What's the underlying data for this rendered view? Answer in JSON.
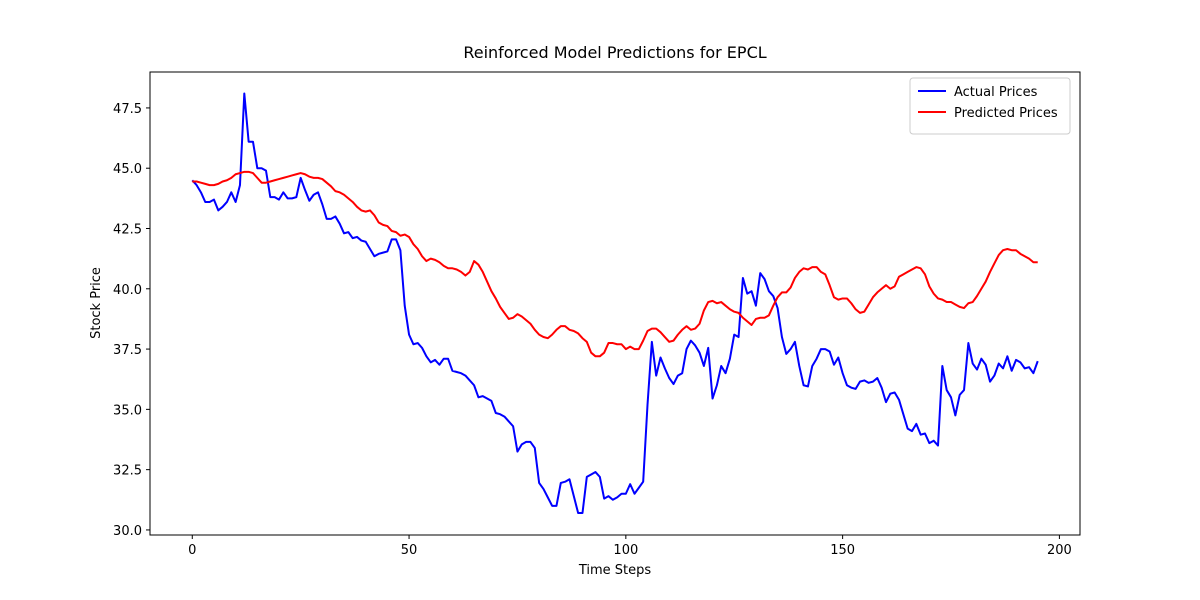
{
  "chart_data": {
    "type": "line",
    "title": "Reinforced Model Predictions for EPCL",
    "x_label": "Time Steps",
    "y_label": "Stock Price",
    "x": [
      0,
      1,
      2,
      3,
      4,
      5,
      6,
      7,
      8,
      9,
      10,
      11,
      12,
      13,
      14,
      15,
      16,
      17,
      18,
      19,
      20,
      21,
      22,
      23,
      24,
      25,
      26,
      27,
      28,
      29,
      30,
      31,
      32,
      33,
      34,
      35,
      36,
      37,
      38,
      39,
      40,
      41,
      42,
      43,
      44,
      45,
      46,
      47,
      48,
      49,
      50,
      51,
      52,
      53,
      54,
      55,
      56,
      57,
      58,
      59,
      60,
      61,
      62,
      63,
      64,
      65,
      66,
      67,
      68,
      69,
      70,
      71,
      72,
      73,
      74,
      75,
      76,
      77,
      78,
      79,
      80,
      81,
      82,
      83,
      84,
      85,
      86,
      87,
      88,
      89,
      90,
      91,
      92,
      93,
      94,
      95,
      96,
      97,
      98,
      99,
      100,
      101,
      102,
      103,
      104,
      105,
      106,
      107,
      108,
      109,
      110,
      111,
      112,
      113,
      114,
      115,
      116,
      117,
      118,
      119,
      120,
      121,
      122,
      123,
      124,
      125,
      126,
      127,
      128,
      129,
      130,
      131,
      132,
      133,
      134,
      135,
      136,
      137,
      138,
      139,
      140,
      141,
      142,
      143,
      144,
      145,
      146,
      147,
      148,
      149,
      150,
      151,
      152,
      153,
      154,
      155,
      156,
      157,
      158,
      159,
      160,
      161,
      162,
      163,
      164,
      165,
      166,
      167,
      168,
      169,
      170,
      171,
      172,
      173,
      174,
      175,
      176,
      177,
      178,
      179,
      180,
      181,
      182,
      183,
      184,
      185,
      186,
      187,
      188,
      189,
      190,
      191,
      192,
      193,
      194,
      195
    ],
    "series": [
      {
        "name": "Actual Prices",
        "color": "#0000ff",
        "values": [
          44.5,
          44.3,
          44.0,
          43.6,
          43.6,
          43.7,
          43.25,
          43.4,
          43.6,
          44.0,
          43.6,
          44.3,
          48.1,
          46.1,
          46.1,
          45.0,
          45.0,
          44.9,
          43.8,
          43.8,
          43.7,
          44.0,
          43.75,
          43.75,
          43.8,
          44.6,
          44.1,
          43.65,
          43.9,
          44.0,
          43.5,
          42.9,
          42.9,
          43.0,
          42.7,
          42.3,
          42.35,
          42.1,
          42.15,
          42.0,
          41.95,
          41.65,
          41.35,
          41.45,
          41.5,
          41.55,
          42.05,
          42.05,
          41.6,
          39.3,
          38.1,
          37.7,
          37.75,
          37.55,
          37.2,
          36.95,
          37.05,
          36.85,
          37.1,
          37.1,
          36.6,
          36.55,
          36.5,
          36.4,
          36.2,
          36.0,
          35.5,
          35.55,
          35.45,
          35.35,
          34.85,
          34.8,
          34.7,
          34.5,
          34.3,
          33.25,
          33.55,
          33.65,
          33.65,
          33.4,
          31.95,
          31.7,
          31.35,
          31.0,
          31.0,
          31.95,
          32.0,
          32.1,
          31.4,
          30.7,
          30.7,
          32.2,
          32.3,
          32.4,
          32.2,
          31.3,
          31.4,
          31.25,
          31.35,
          31.5,
          31.5,
          31.9,
          31.5,
          31.75,
          32.0,
          35.2,
          37.8,
          36.4,
          37.15,
          36.7,
          36.3,
          36.05,
          36.4,
          36.5,
          37.5,
          37.85,
          37.65,
          37.35,
          36.8,
          37.55,
          35.45,
          36.0,
          36.8,
          36.5,
          37.1,
          38.1,
          38.0,
          40.45,
          39.8,
          39.9,
          39.3,
          40.65,
          40.4,
          39.9,
          39.7,
          39.2,
          38.0,
          37.3,
          37.5,
          37.8,
          36.8,
          36.0,
          35.95,
          36.8,
          37.1,
          37.5,
          37.5,
          37.4,
          36.85,
          37.15,
          36.5,
          36.0,
          35.9,
          35.85,
          36.15,
          36.2,
          36.1,
          36.15,
          36.3,
          35.9,
          35.3,
          35.65,
          35.7,
          35.4,
          34.8,
          34.2,
          34.1,
          34.4,
          33.95,
          34.0,
          33.6,
          33.7,
          33.5,
          36.8,
          35.8,
          35.5,
          34.75,
          35.6,
          35.8,
          37.75,
          36.9,
          36.65,
          37.1,
          36.85,
          36.15,
          36.4,
          36.9,
          36.7,
          37.2,
          36.6,
          37.05,
          36.95,
          36.7,
          36.75,
          36.5,
          37.0
        ]
      },
      {
        "name": "Predicted Prices",
        "color": "#ff0000",
        "values": [
          44.45,
          44.45,
          44.4,
          44.35,
          44.3,
          44.3,
          44.35,
          44.45,
          44.5,
          44.6,
          44.75,
          44.8,
          44.85,
          44.85,
          44.8,
          44.6,
          44.4,
          44.4,
          44.45,
          44.5,
          44.55,
          44.6,
          44.65,
          44.7,
          44.75,
          44.8,
          44.75,
          44.65,
          44.6,
          44.6,
          44.55,
          44.4,
          44.25,
          44.05,
          44.0,
          43.9,
          43.75,
          43.6,
          43.4,
          43.25,
          43.2,
          43.25,
          43.05,
          42.75,
          42.65,
          42.6,
          42.4,
          42.35,
          42.2,
          42.25,
          42.15,
          41.85,
          41.65,
          41.35,
          41.15,
          41.25,
          41.2,
          41.1,
          40.95,
          40.85,
          40.85,
          40.8,
          40.7,
          40.55,
          40.7,
          41.15,
          41.0,
          40.7,
          40.3,
          39.9,
          39.6,
          39.25,
          39.0,
          38.75,
          38.8,
          38.95,
          38.85,
          38.7,
          38.55,
          38.3,
          38.1,
          38.0,
          37.95,
          38.1,
          38.3,
          38.45,
          38.45,
          38.3,
          38.25,
          38.15,
          37.95,
          37.8,
          37.35,
          37.2,
          37.2,
          37.35,
          37.75,
          37.75,
          37.7,
          37.7,
          37.5,
          37.6,
          37.5,
          37.5,
          37.85,
          38.25,
          38.35,
          38.35,
          38.2,
          38.0,
          37.8,
          37.85,
          38.1,
          38.3,
          38.45,
          38.3,
          38.35,
          38.55,
          39.1,
          39.45,
          39.5,
          39.4,
          39.45,
          39.3,
          39.15,
          39.05,
          39.0,
          38.8,
          38.65,
          38.5,
          38.75,
          38.8,
          38.8,
          38.9,
          39.3,
          39.65,
          39.85,
          39.85,
          40.05,
          40.45,
          40.7,
          40.85,
          40.8,
          40.9,
          40.9,
          40.7,
          40.6,
          40.15,
          39.65,
          39.55,
          39.6,
          39.6,
          39.4,
          39.15,
          39.0,
          39.05,
          39.35,
          39.65,
          39.85,
          40.0,
          40.15,
          40.0,
          40.1,
          40.5,
          40.6,
          40.7,
          40.8,
          40.9,
          40.85,
          40.6,
          40.1,
          39.8,
          39.6,
          39.55,
          39.45,
          39.45,
          39.35,
          39.25,
          39.2,
          39.4,
          39.45,
          39.7,
          40.0,
          40.3,
          40.7,
          41.05,
          41.4,
          41.6,
          41.65,
          41.6,
          41.6,
          41.45,
          41.35,
          41.25,
          41.1,
          41.1
        ]
      }
    ],
    "xlim": [
      -9.75,
      204.75
    ],
    "ylim": [
      29.79,
      48.99
    ],
    "xticks": [
      0,
      50,
      100,
      150,
      200
    ],
    "yticks": [
      {
        "value": 30,
        "label": "30.0"
      },
      32.5,
      {
        "value": 35,
        "label": "35.0"
      },
      37.5,
      {
        "value": 40,
        "label": "40.0"
      },
      42.5,
      {
        "value": 45,
        "label": "45.0"
      },
      47.5
    ],
    "grid": false,
    "legend": "upper right"
  }
}
